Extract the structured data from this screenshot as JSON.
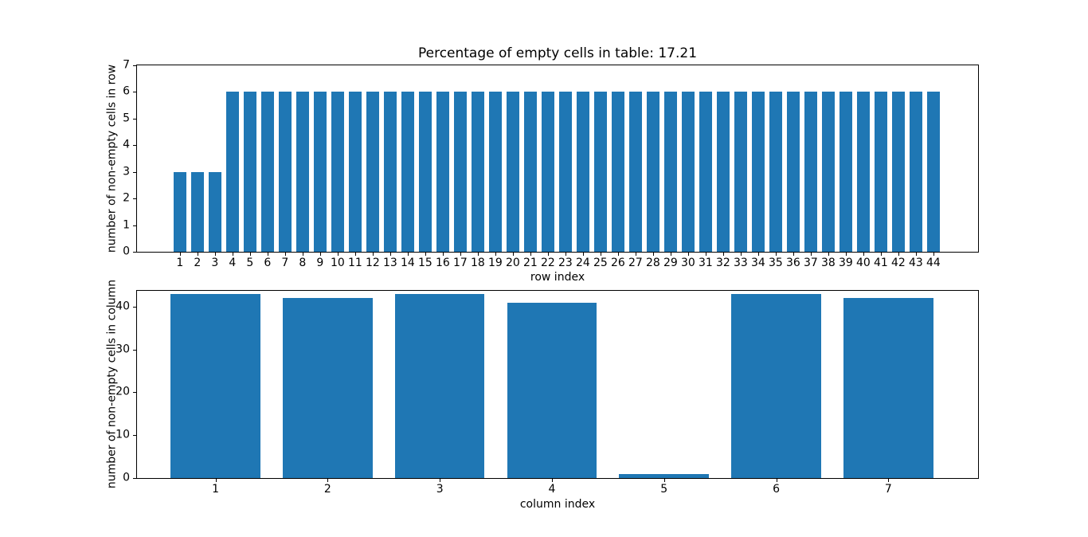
{
  "figure": {
    "background": "#ffffff",
    "bar_color": "#1f77b4",
    "axis_color": "#000000",
    "text_color": "#000000"
  },
  "chart_data": [
    {
      "type": "bar",
      "title": "Percentage of empty cells in table: 17.21",
      "xlabel": "row index",
      "ylabel": "number of non-empty cells in row",
      "categories": [
        1,
        2,
        3,
        4,
        5,
        6,
        7,
        8,
        9,
        10,
        11,
        12,
        13,
        14,
        15,
        16,
        17,
        18,
        19,
        20,
        21,
        22,
        23,
        24,
        25,
        26,
        27,
        28,
        29,
        30,
        31,
        32,
        33,
        34,
        35,
        36,
        37,
        38,
        39,
        40,
        41,
        42,
        43,
        44
      ],
      "values": [
        3,
        3,
        3,
        6,
        6,
        6,
        6,
        6,
        6,
        6,
        6,
        6,
        6,
        6,
        6,
        6,
        6,
        6,
        6,
        6,
        6,
        6,
        6,
        6,
        6,
        6,
        6,
        6,
        6,
        6,
        6,
        6,
        6,
        6,
        6,
        6,
        6,
        6,
        6,
        6,
        6,
        6,
        6,
        6
      ],
      "yticks": [
        0,
        1,
        2,
        3,
        4,
        5,
        6,
        7
      ],
      "ylim": [
        0,
        7
      ],
      "xlim": [
        -1.45,
        46.55
      ],
      "bar_width": 0.7,
      "grid": false,
      "legend": null
    },
    {
      "type": "bar",
      "title": "",
      "xlabel": "column index",
      "ylabel": "number of non-empty cells in column",
      "categories": [
        1,
        2,
        3,
        4,
        5,
        6,
        7
      ],
      "values": [
        43,
        42,
        43,
        41,
        1,
        43,
        42
      ],
      "yticks": [
        0,
        10,
        20,
        30,
        40
      ],
      "ylim": [
        0,
        43.7
      ],
      "xlim": [
        0.3,
        7.8
      ],
      "bar_width": 0.8,
      "grid": false,
      "legend": null
    }
  ]
}
